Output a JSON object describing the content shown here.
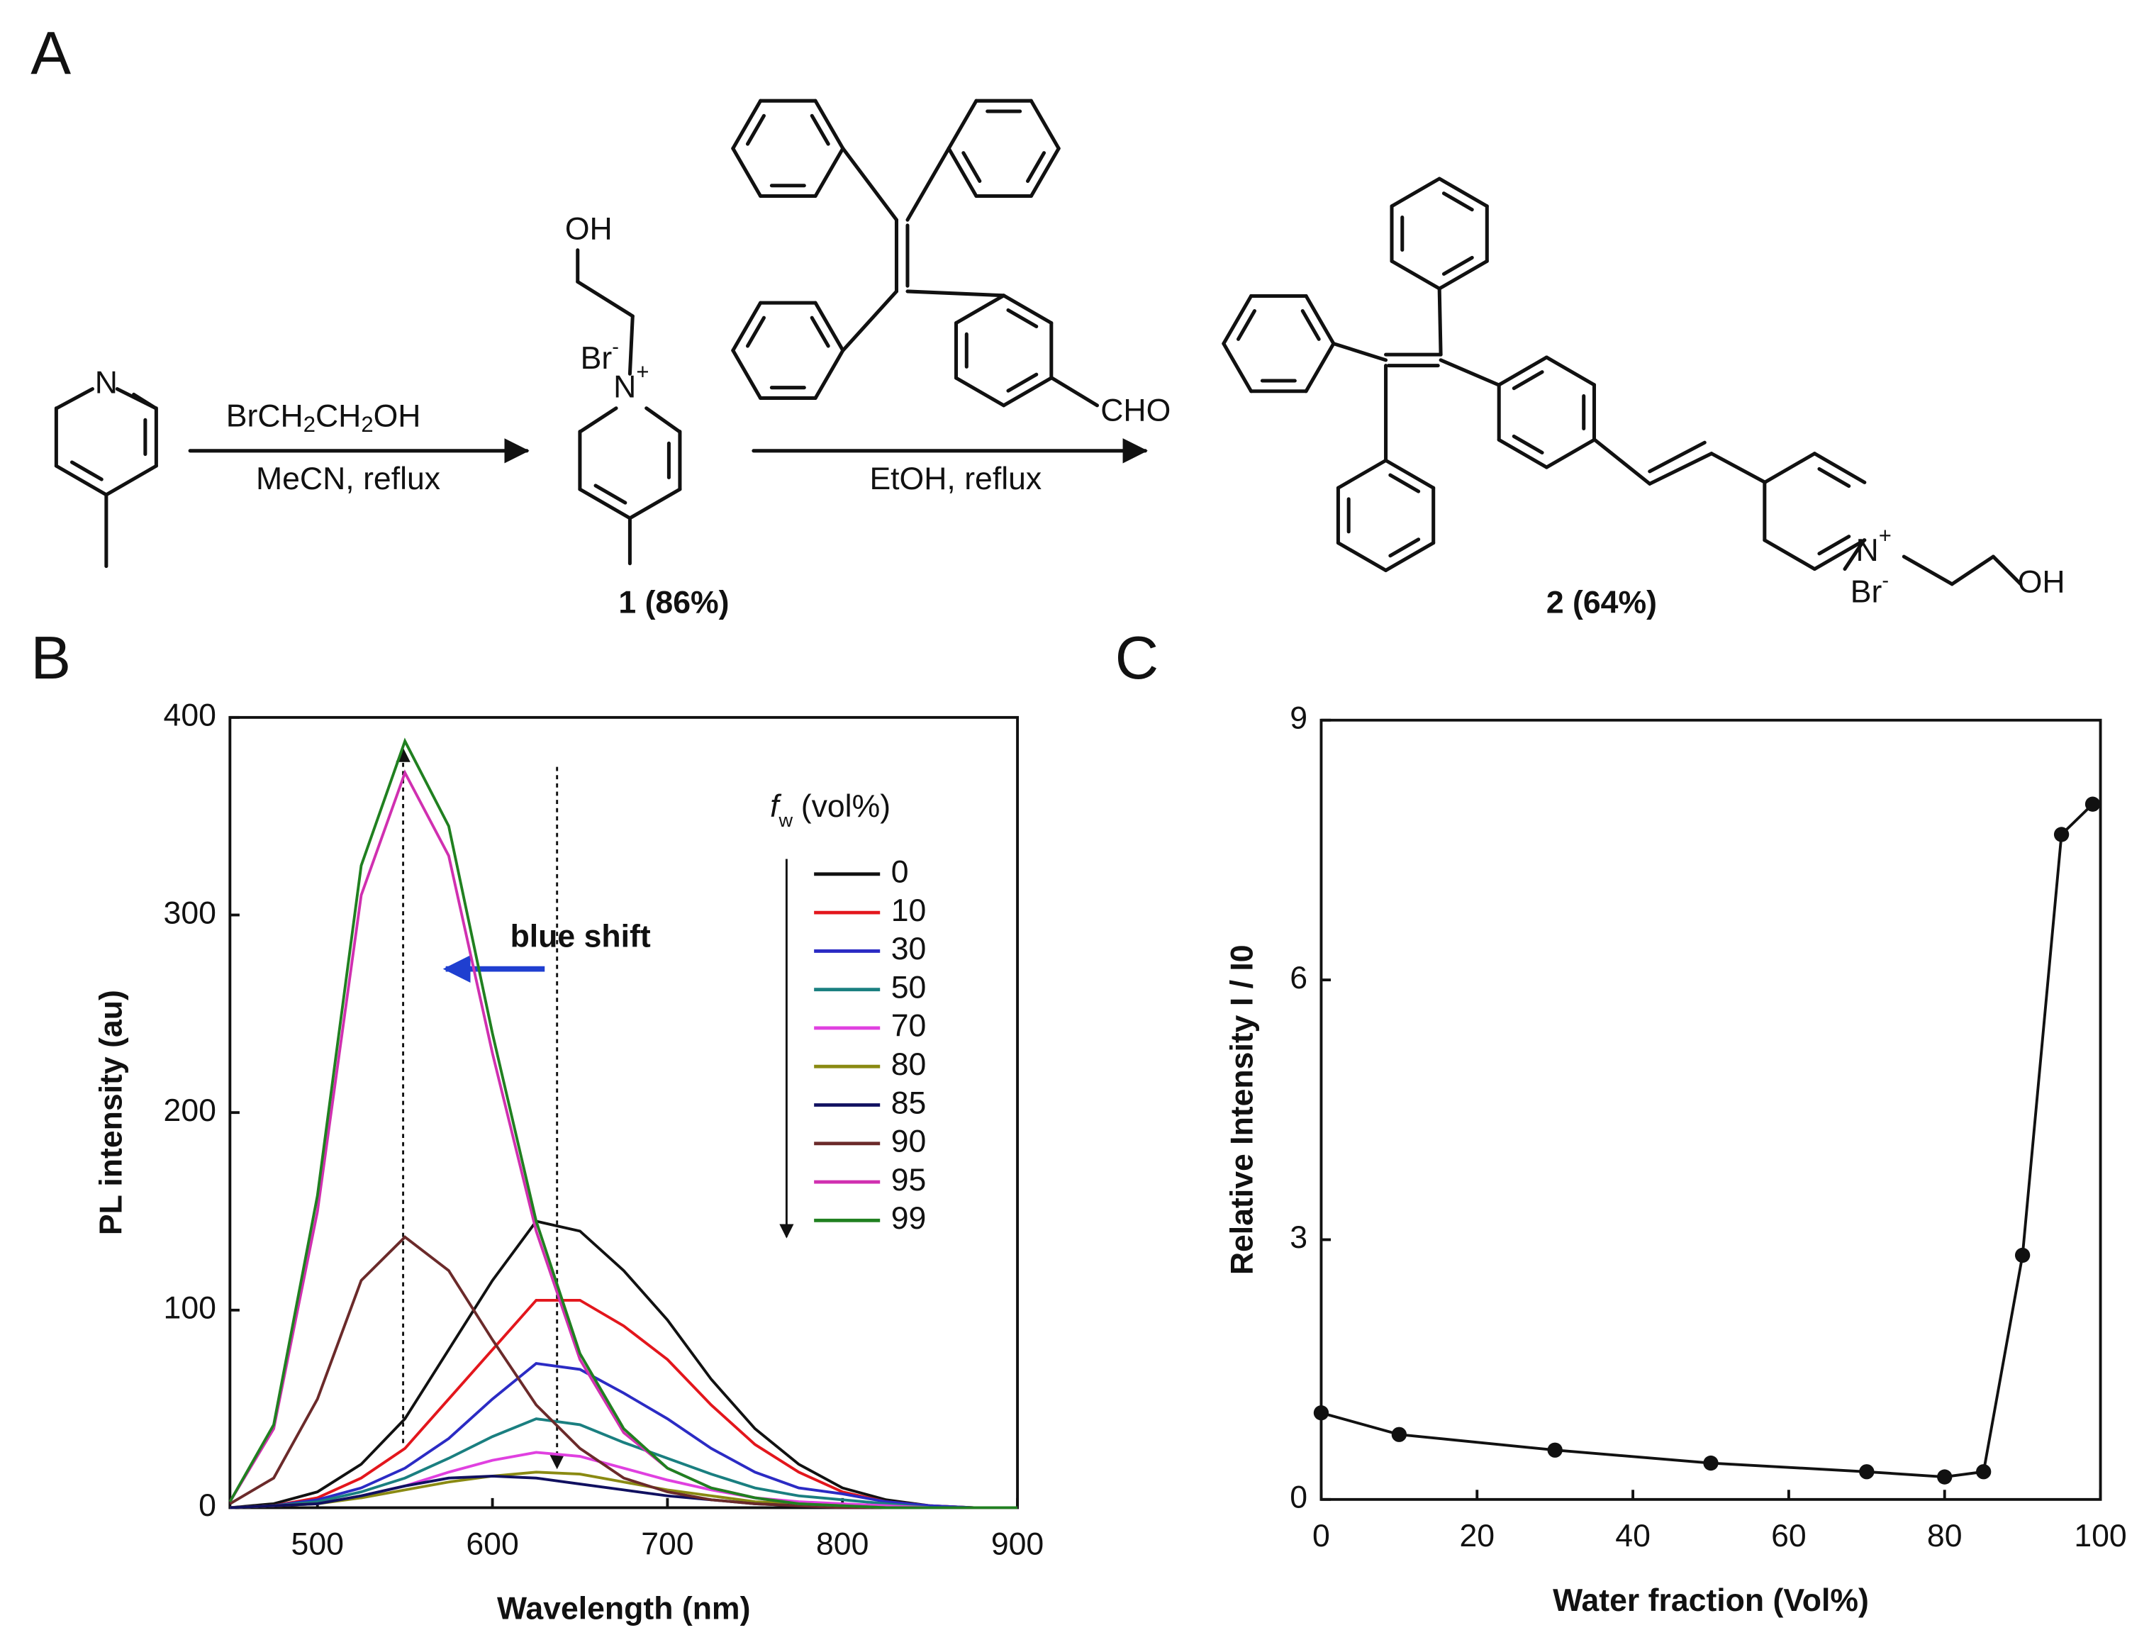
{
  "scheme": {
    "label": "A",
    "start_atom": "N",
    "reagent_1": [
      "BrCH",
      "2",
      "CH",
      "2",
      "OH"
    ],
    "conditions_1": "MeCN, reflux",
    "compound_1": {
      "hydroxyl": "OH",
      "counterion": [
        "Br",
        "-"
      ],
      "nitrogen": [
        "N",
        "+"
      ],
      "label": "1 (86%)"
    },
    "aldehyde": "CHO",
    "conditions_2": "EtOH, reflux",
    "compound_2": {
      "nitrogen": [
        "N",
        "+"
      ],
      "counterion": [
        "Br",
        "-"
      ],
      "hydroxyl": "OH",
      "label": "2 (64%)"
    }
  },
  "chart_data": [
    {
      "type": "line",
      "panel_label": "B",
      "x_label": "Wavelength (nm)",
      "y_label": "PL intensity (au)",
      "annotation": "blue shift",
      "legend_title": [
        "f",
        "w",
        "(vol%)"
      ],
      "xlim": [
        450,
        900
      ],
      "xticks": [
        500,
        600,
        700,
        800,
        900
      ],
      "ylim": [
        0,
        400
      ],
      "yticks": [
        0,
        100,
        200,
        300,
        400
      ],
      "x": [
        450,
        475,
        500,
        525,
        550,
        575,
        600,
        625,
        650,
        675,
        700,
        725,
        750,
        775,
        800,
        825,
        850,
        875,
        900
      ],
      "series": [
        {
          "name": "0",
          "color": "#111111",
          "values": [
            0,
            2,
            8,
            22,
            45,
            80,
            115,
            145,
            140,
            120,
            95,
            65,
            40,
            22,
            10,
            4,
            1,
            0,
            0
          ]
        },
        {
          "name": "10",
          "color": "#e3161c",
          "values": [
            0,
            1,
            5,
            15,
            30,
            55,
            80,
            105,
            105,
            92,
            75,
            52,
            32,
            18,
            8,
            3,
            1,
            0,
            0
          ]
        },
        {
          "name": "30",
          "color": "#2b2bc4",
          "values": [
            0,
            1,
            4,
            10,
            20,
            35,
            55,
            73,
            70,
            58,
            45,
            30,
            18,
            10,
            7,
            3,
            1,
            0,
            0
          ]
        },
        {
          "name": "50",
          "color": "#1a7f80",
          "values": [
            0,
            1,
            3,
            8,
            15,
            25,
            36,
            45,
            42,
            33,
            25,
            17,
            10,
            6,
            4,
            2,
            0,
            0,
            0
          ]
        },
        {
          "name": "70",
          "color": "#e040e0",
          "values": [
            0,
            1,
            2,
            6,
            11,
            18,
            24,
            28,
            26,
            20,
            14,
            9,
            5,
            3,
            2,
            1,
            0,
            0,
            0
          ]
        },
        {
          "name": "80",
          "color": "#8a8a12",
          "values": [
            0,
            1,
            2,
            5,
            9,
            13,
            16,
            18,
            17,
            13,
            9,
            6,
            3,
            2,
            1,
            0,
            0,
            0,
            0
          ]
        },
        {
          "name": "85",
          "color": "#101060",
          "values": [
            0,
            1,
            2,
            6,
            11,
            15,
            16,
            15,
            12,
            9,
            6,
            4,
            2,
            1,
            0,
            0,
            0,
            0,
            0
          ]
        },
        {
          "name": "90",
          "color": "#6b2a2a",
          "values": [
            2,
            15,
            55,
            115,
            137,
            120,
            85,
            52,
            30,
            15,
            8,
            4,
            2,
            1,
            0,
            0,
            0,
            0,
            0
          ]
        },
        {
          "name": "95",
          "color": "#d030b0",
          "values": [
            3,
            40,
            150,
            310,
            372,
            330,
            230,
            140,
            75,
            38,
            20,
            10,
            5,
            2,
            1,
            0,
            0,
            0,
            0
          ]
        },
        {
          "name": "99",
          "color": "#208020",
          "values": [
            3,
            42,
            158,
            325,
            388,
            345,
            240,
            145,
            78,
            40,
            20,
            10,
            5,
            2,
            1,
            0,
            0,
            0,
            0
          ]
        }
      ]
    },
    {
      "type": "scatter",
      "connected": true,
      "panel_label": "C",
      "x_label": "Water fraction (Vol%)",
      "y_label": "Relative Intensity I / I0",
      "xlim": [
        0,
        100
      ],
      "xticks": [
        0,
        20,
        40,
        60,
        80,
        100
      ],
      "ylim": [
        0,
        9
      ],
      "yticks": [
        0,
        3,
        6,
        9
      ],
      "x": [
        0,
        10,
        30,
        50,
        70,
        80,
        85,
        90,
        95,
        99
      ],
      "values": [
        1.0,
        0.75,
        0.57,
        0.42,
        0.32,
        0.26,
        0.32,
        2.82,
        7.68,
        8.03
      ],
      "color": "#111111"
    }
  ]
}
